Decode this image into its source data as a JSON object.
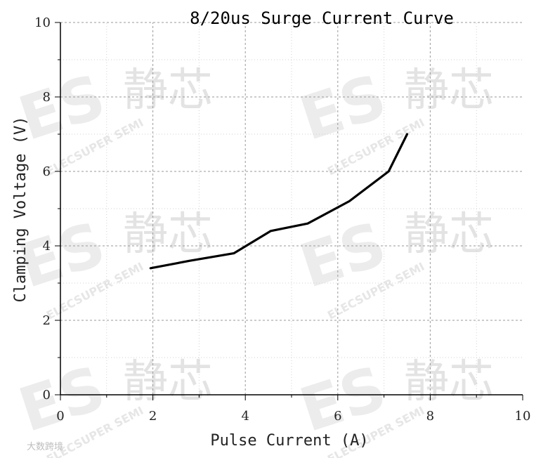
{
  "chart_data": {
    "type": "line",
    "title": "8/20us Surge Current Curve",
    "xlabel": "Pulse Current (A)",
    "ylabel": "Clamping Voltage (V)",
    "xlim": [
      0,
      10
    ],
    "ylim": [
      0,
      10
    ],
    "xticks": [
      0,
      2,
      4,
      6,
      8,
      10
    ],
    "yticks": [
      0,
      2,
      4,
      6,
      8,
      10
    ],
    "grid": true,
    "series": [
      {
        "x": [
          1.95,
          2.8,
          3.75,
          4.55,
          5.35,
          6.25,
          7.1,
          7.5
        ],
        "y": [
          3.4,
          3.6,
          3.8,
          4.4,
          4.6,
          5.2,
          6.0,
          7.0
        ],
        "color": "#000000"
      }
    ]
  },
  "watermark": {
    "cn_text": "静芯",
    "logo_text": "ES",
    "en_text": "ELECSUPER SEMI",
    "credit_text": "大数跨境"
  }
}
